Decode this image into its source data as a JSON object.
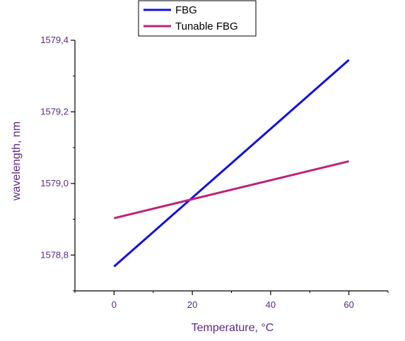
{
  "chart_data": {
    "type": "line",
    "title": "",
    "xlabel": "Temperature, °C",
    "ylabel": "wavelength, nm",
    "xlim": [
      -10,
      70
    ],
    "ylim": [
      1578.7,
      1579.4
    ],
    "x_ticks": [
      0,
      20,
      40,
      60
    ],
    "x_tick_labels": [
      "0",
      "20",
      "40",
      "60"
    ],
    "y_ticks": [
      1578.8,
      1579.0,
      1579.2,
      1579.4
    ],
    "y_tick_labels": [
      "1578,8",
      "1579,0",
      "1579,2",
      "1579,4"
    ],
    "grid": false,
    "legend_position": "top",
    "series": [
      {
        "name": "FBG",
        "color": "#1010e0",
        "x": [
          0,
          60
        ],
        "y": [
          1578.768,
          1579.345
        ]
      },
      {
        "name": "Tunable FBG",
        "color": "#c0207a",
        "x": [
          0,
          60
        ],
        "y": [
          1578.903,
          1579.062
        ]
      }
    ]
  }
}
